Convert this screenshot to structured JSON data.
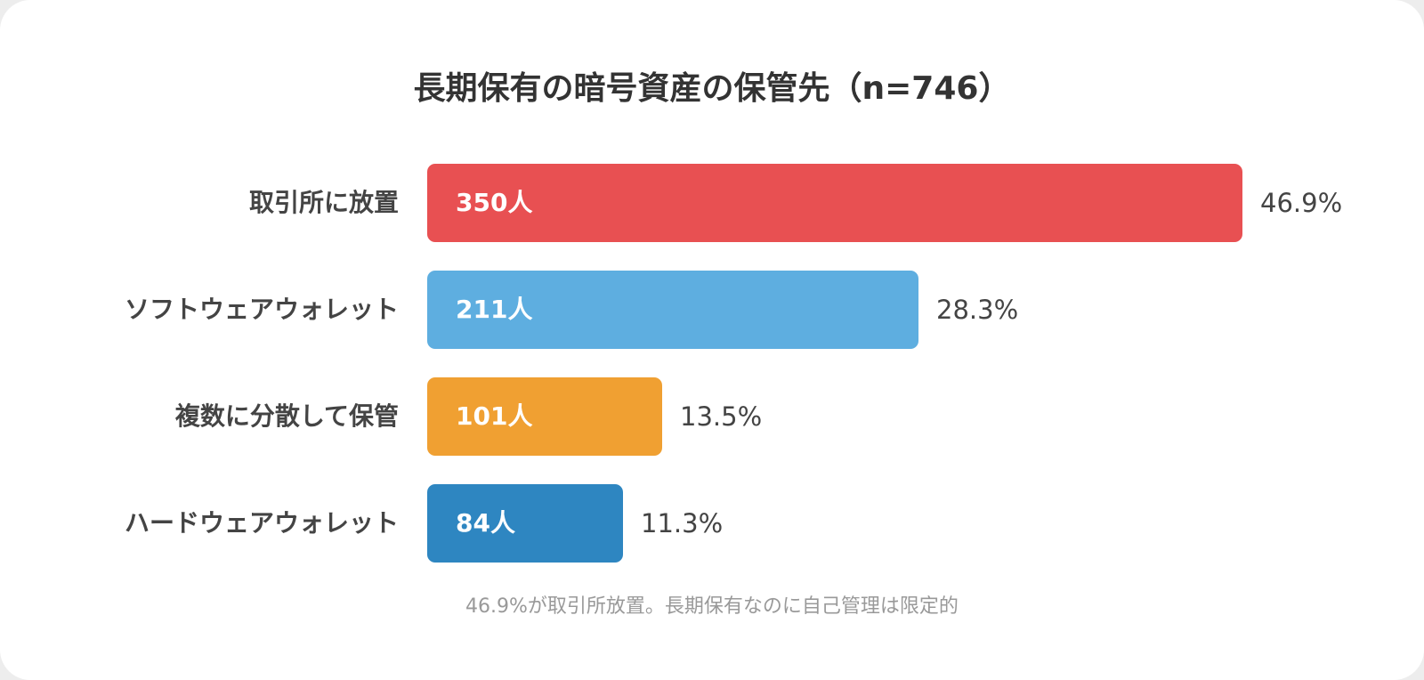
{
  "colors": {
    "red": "#e85052",
    "light_blue": "#5eaee0",
    "orange": "#f0a032",
    "blue": "#2e86c1"
  },
  "chart_data": {
    "type": "bar",
    "orientation": "horizontal",
    "title": "長期保有の暗号資産の保管先（n=746）",
    "categories": [
      "取引所に放置",
      "ソフトウェアウォレット",
      "複数に分散して保管",
      "ハードウェアウォレット"
    ],
    "values": [
      350,
      211,
      101,
      84
    ],
    "count_labels": [
      "350人",
      "211人",
      "101人",
      "84人"
    ],
    "percent_labels": [
      "46.9%",
      "28.3%",
      "13.5%",
      "11.3%"
    ],
    "bar_colors": [
      "#e85052",
      "#5eaee0",
      "#f0a032",
      "#2e86c1"
    ],
    "xlim": [
      0,
      350
    ],
    "grid": false,
    "legend": "none",
    "footnote": "46.9%が取引所放置。長期保有なのに自己管理は限定的"
  }
}
